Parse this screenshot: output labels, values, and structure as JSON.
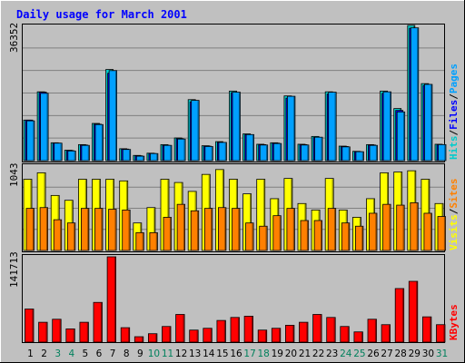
{
  "colors": {
    "background": "#c0c0c0",
    "panel": "#c0c0c0",
    "grid": "#808080",
    "title": "#0000ff",
    "hits": "#00cccc",
    "files": "#0000ff",
    "pages": "#00a0ff",
    "visits": "#ffff00",
    "sites": "#ff8000",
    "kbytes": "#ff0000",
    "weekday": "#000000",
    "weekend": "#00805c"
  },
  "chart_data": [
    {
      "type": "bar",
      "title": "Daily usage for March 2001",
      "ymax_label": "36352",
      "ylim": [
        0,
        36352
      ],
      "series_labels": [
        {
          "text": "Hits",
          "color": "#00cccc"
        },
        {
          "text": "/",
          "color": "#000000"
        },
        {
          "text": "Files",
          "color": "#0000ff"
        },
        {
          "text": "/",
          "color": "#000000"
        },
        {
          "text": "Pages",
          "color": "#00a0ff"
        }
      ],
      "categories": [
        "1",
        "2",
        "3",
        "4",
        "5",
        "6",
        "7",
        "8",
        "9",
        "10",
        "11",
        "12",
        "13",
        "14",
        "15",
        "16",
        "17",
        "18",
        "19",
        "20",
        "21",
        "22",
        "23",
        "24",
        "25",
        "26",
        "27",
        "28",
        "29",
        "30",
        "31"
      ],
      "weekend_days": [
        "3",
        "4",
        "10",
        "11",
        "17",
        "18",
        "24",
        "25",
        "31"
      ],
      "series": [
        {
          "name": "Hits",
          "values": [
            10900,
            18500,
            4800,
            2800,
            4300,
            10000,
            24500,
            3200,
            1400,
            2000,
            4300,
            6100,
            16400,
            4000,
            5100,
            18700,
            7200,
            4400,
            4800,
            17400,
            4400,
            6500,
            18500,
            3900,
            2500,
            4300,
            18700,
            14000,
            36352,
            20700,
            4400
          ]
        },
        {
          "name": "Files",
          "values": [
            10900,
            18400,
            4700,
            2700,
            4200,
            9800,
            23500,
            3100,
            1300,
            1900,
            4100,
            5900,
            15800,
            3900,
            4900,
            18300,
            7000,
            4300,
            4700,
            16800,
            4300,
            6200,
            17900,
            3800,
            2400,
            4200,
            18100,
            13500,
            35600,
            20200,
            4300
          ]
        },
        {
          "name": "Pages",
          "values": [
            10700,
            18100,
            4700,
            2600,
            4100,
            9700,
            24200,
            3000,
            1200,
            1900,
            4100,
            5800,
            16200,
            3800,
            4900,
            18400,
            7000,
            4200,
            4600,
            17300,
            4200,
            6300,
            18400,
            3700,
            2400,
            4100,
            18500,
            13100,
            35700,
            20500,
            4300
          ]
        }
      ]
    },
    {
      "type": "bar",
      "ymax_label": "1043",
      "ylim": [
        0,
        1043
      ],
      "series_labels": [
        {
          "text": "Visits",
          "color": "#ffff00"
        },
        {
          "text": "/",
          "color": "#000000"
        },
        {
          "text": "Sites",
          "color": "#ff8000"
        }
      ],
      "categories": [
        "1",
        "2",
        "3",
        "4",
        "5",
        "6",
        "7",
        "8",
        "9",
        "10",
        "11",
        "12",
        "13",
        "14",
        "15",
        "16",
        "17",
        "18",
        "19",
        "20",
        "21",
        "22",
        "23",
        "24",
        "25",
        "26",
        "27",
        "28",
        "29",
        "30",
        "31"
      ],
      "series": [
        {
          "name": "Visits",
          "values": [
            880,
            960,
            680,
            620,
            880,
            880,
            880,
            860,
            340,
            530,
            880,
            840,
            730,
            940,
            1000,
            880,
            700,
            880,
            640,
            890,
            580,
            500,
            890,
            500,
            410,
            640,
            960,
            970,
            985,
            880,
            580
          ]
        },
        {
          "name": "Sites",
          "values": [
            520,
            530,
            380,
            340,
            520,
            520,
            510,
            500,
            220,
            220,
            410,
            570,
            490,
            520,
            530,
            520,
            340,
            300,
            430,
            520,
            370,
            370,
            520,
            340,
            300,
            460,
            570,
            560,
            590,
            460,
            420
          ]
        }
      ]
    },
    {
      "type": "bar",
      "ymax_label": "141713",
      "ylim": [
        0,
        141713
      ],
      "series_labels": [
        {
          "text": "KBytes",
          "color": "#ff0000"
        }
      ],
      "categories": [
        "1",
        "2",
        "3",
        "4",
        "5",
        "6",
        "7",
        "8",
        "9",
        "10",
        "11",
        "12",
        "13",
        "14",
        "15",
        "16",
        "17",
        "18",
        "19",
        "20",
        "21",
        "22",
        "23",
        "24",
        "25",
        "26",
        "27",
        "28",
        "29",
        "30",
        "31"
      ],
      "series": [
        {
          "name": "KBytes",
          "values": [
            55000,
            33000,
            38000,
            22000,
            33000,
            66000,
            141713,
            24000,
            9000,
            14000,
            26000,
            46000,
            20000,
            23000,
            36000,
            41000,
            43000,
            20000,
            23000,
            28000,
            33000,
            46000,
            41000,
            26000,
            17000,
            38000,
            29000,
            89000,
            101000,
            42000,
            29000
          ]
        }
      ]
    }
  ]
}
